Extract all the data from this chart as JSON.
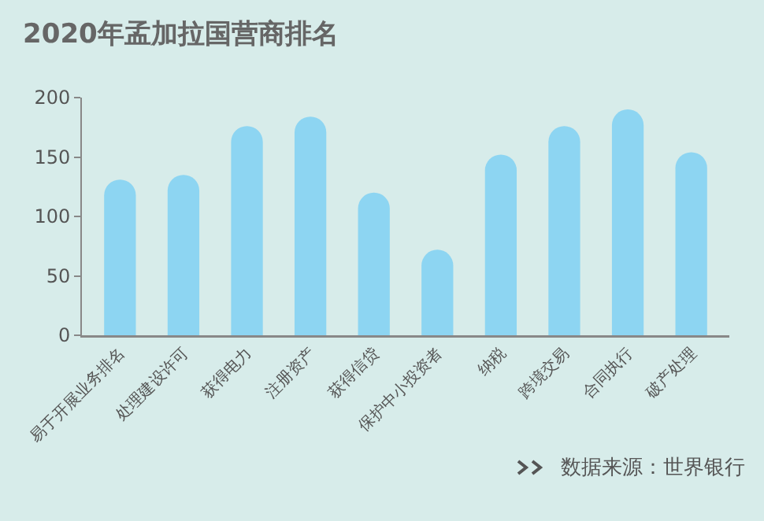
{
  "chart_data": {
    "type": "bar",
    "title": "2020年孟加拉国营商排名",
    "categories": [
      "易于开展业务排名",
      "处理建设许可",
      "获得电力",
      "注册资产",
      "获得信贷",
      "保护中小投资者",
      "纳税",
      "跨境交易",
      "合同执行",
      "破产处理"
    ],
    "values": [
      131,
      135,
      176,
      184,
      120,
      72,
      152,
      176,
      190,
      154
    ],
    "color": "#8dd5f2",
    "ylim": [
      0,
      200
    ],
    "yticks": [
      0,
      50,
      100,
      150,
      200
    ],
    "grid": false,
    "legend": false,
    "annotations": [
      "数据来源：世界银行"
    ]
  }
}
